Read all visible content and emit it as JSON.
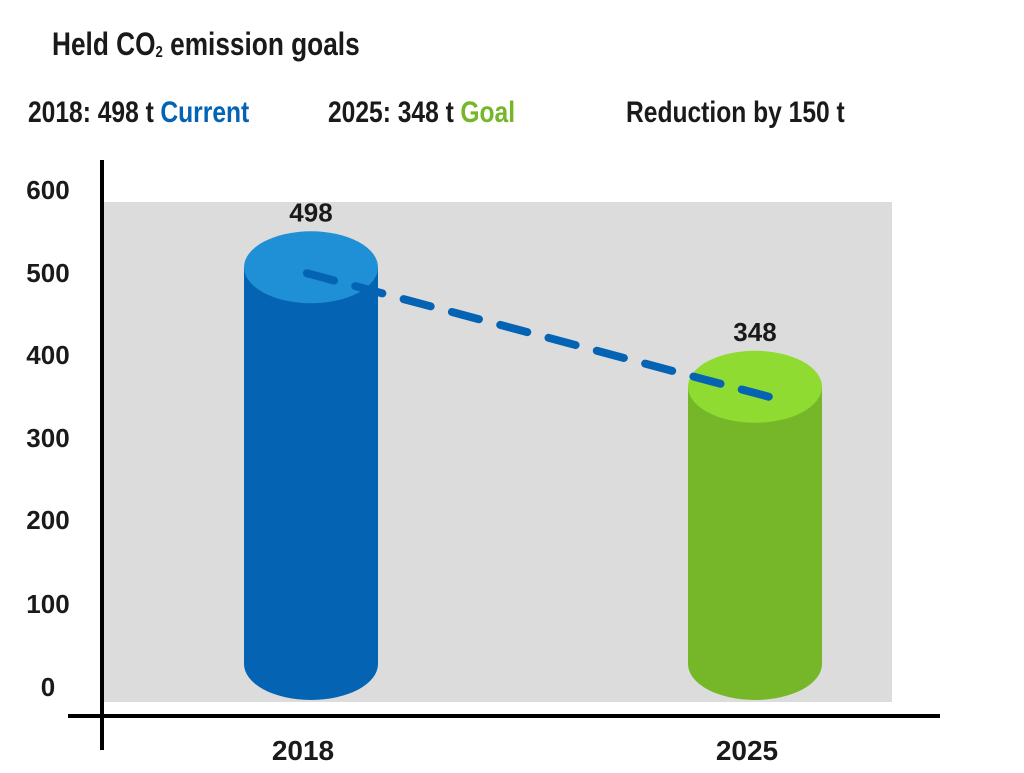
{
  "title": {
    "prefix": "Held CO",
    "subscript": "2",
    "suffix": " emission goals"
  },
  "legend": [
    {
      "text": "2018: 498 t",
      "tag": "Current",
      "tag_color": "#0563b3"
    },
    {
      "text": "2025: 348 t",
      "tag": "Goal",
      "tag_color": "#76b72a"
    },
    {
      "text": "Reduction by 150 t"
    }
  ],
  "chart_data": {
    "type": "bar",
    "title": "Held CO2 emission goals",
    "categories": [
      "2018",
      "2025"
    ],
    "values": [
      498,
      348
    ],
    "value_labels": [
      "498",
      "348"
    ],
    "colors": [
      "#0563b3",
      "#76b72a"
    ],
    "top_colors": [
      "#1f90d6",
      "#8fdb32"
    ],
    "trend_line": {
      "from": "2018",
      "to": "2025",
      "style": "dashed",
      "color": "#0563b3"
    },
    "ylim": [
      0,
      600
    ],
    "yticks": [
      0,
      100,
      200,
      300,
      400,
      500,
      600
    ],
    "ytick_labels": [
      "0",
      "100",
      "200",
      "300",
      "400",
      "500",
      "600"
    ],
    "xlabel": "",
    "ylabel": "",
    "background": "#dcdcdc",
    "grid": false
  }
}
